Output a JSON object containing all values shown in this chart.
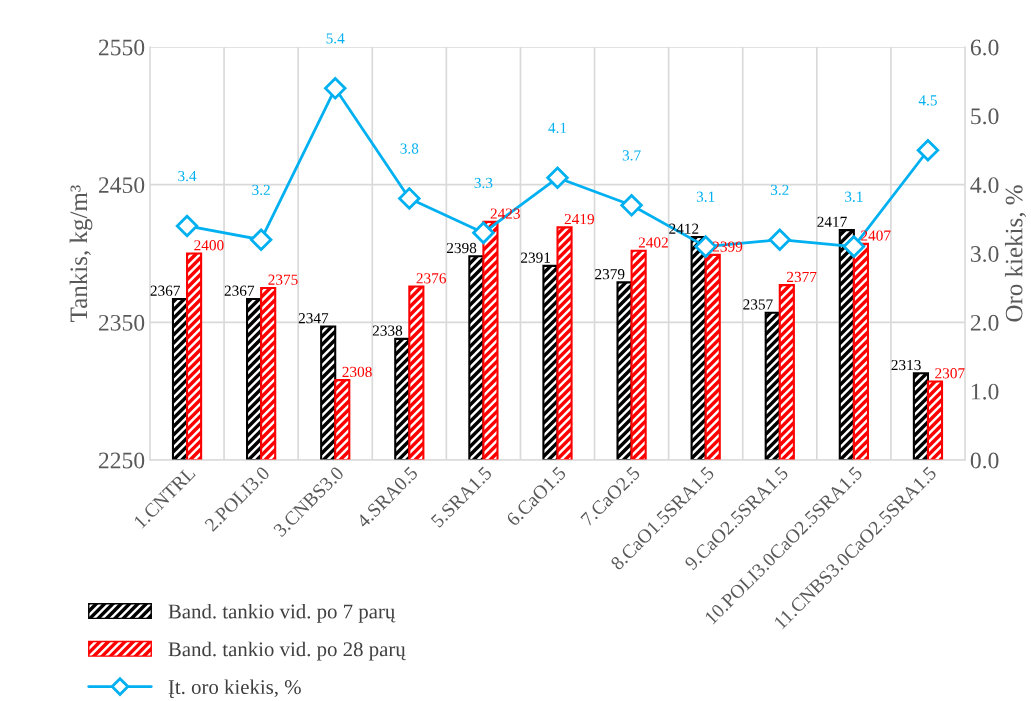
{
  "chart_data": {
    "type": "bar",
    "ylabel": "Tankis, kg/m³",
    "y2label": "Oro kiekis, %",
    "categories": [
      "1.CNTRL",
      "2.POLI3.0",
      "3.CNBS3.0",
      "4.SRA0.5",
      "5.SRA1.5",
      "6.CaO1.5",
      "7.CaO2.5",
      "8.CaO1.5SRA1.5",
      "9.CaO2.5SRA1.5",
      "10.POLI3.0CaO2.5SRA1.5",
      "11.CNBS3.0CaO2.5SRA1.5"
    ],
    "series": [
      {
        "name": "Band. tankio vid. po 7 parų",
        "color": "#000000",
        "values": [
          2367,
          2367,
          2347,
          2338,
          2398,
          2391,
          2379,
          2412,
          2357,
          2417,
          2313
        ]
      },
      {
        "name": "Band. tankio vid. po 28 parų",
        "color": "#ff0000",
        "values": [
          2400,
          2375,
          2308,
          2376,
          2423,
          2419,
          2402,
          2399,
          2377,
          2407,
          2307
        ]
      },
      {
        "name": "Įt. oro kiekis, %",
        "type": "line",
        "axis": "y2",
        "color": "#00b0f0",
        "marker": "diamond",
        "values": [
          3.4,
          3.2,
          5.4,
          3.8,
          3.3,
          4.1,
          3.7,
          3.1,
          3.2,
          3.1,
          4.5
        ]
      }
    ],
    "ylim": [
      2250,
      2550
    ],
    "yticks": [
      2250,
      2350,
      2450,
      2550
    ],
    "y2lim": [
      0,
      6
    ],
    "y2ticks": [
      {
        "value": 0,
        "label": "0.0"
      },
      {
        "value": 1,
        "label": "1.0"
      },
      {
        "value": 2,
        "label": "2.0"
      },
      {
        "value": 3,
        "label": "3.0"
      },
      {
        "value": 4,
        "label": "4.0"
      },
      {
        "value": 5,
        "label": "5.0"
      },
      {
        "value": 6,
        "label": "6.0"
      }
    ],
    "grid": true,
    "legend": "bottom left",
    "data_labels": true
  }
}
